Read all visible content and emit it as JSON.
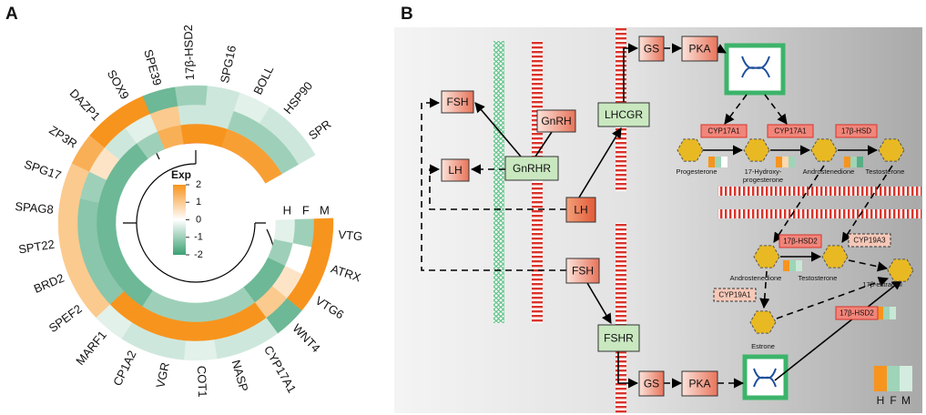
{
  "panel_labels": [
    "A",
    "B"
  ],
  "chart_data": {
    "type": "circular-heatmap",
    "categories": [
      "17β-HSD2",
      "SPG16",
      "BOLL",
      "HSP90",
      "SPR",
      "VTG",
      "ATRX",
      "VTG6",
      "WNT4",
      "CYP17A1",
      "NASP",
      "COT1",
      "VGR",
      "CP1A2",
      "MARF1",
      "SPEF2",
      "BRD2",
      "SPT22",
      "SPAG8",
      "SPG17",
      "ZP3R",
      "DAZP1",
      "SOX9",
      "SPE39"
    ],
    "series": [
      {
        "name": "H",
        "values": [
          2,
          2,
          1.8,
          1.8,
          1.8,
          -0.3,
          -1,
          -1.5,
          -1.5,
          -1,
          -1,
          -1,
          -1,
          -1,
          -1.5,
          -1.5,
          -1.5,
          -1.5,
          -1.5,
          -1.5,
          -1.5,
          -1.5,
          -1,
          1.5
        ]
      },
      {
        "name": "F",
        "values": [
          -0.5,
          -0.5,
          -1,
          -1,
          -1,
          -1,
          0,
          0.5,
          1,
          2,
          2,
          2,
          2,
          2,
          2,
          -1.2,
          -1.2,
          -1.2,
          -1.2,
          -1,
          0.5,
          -0.5,
          -0.3,
          1
        ]
      },
      {
        "name": "M",
        "values": [
          -1,
          -0.5,
          -0.3,
          -0.5,
          -0.5,
          2,
          2,
          2,
          -1.5,
          -0.5,
          -0.5,
          -0.3,
          -0.5,
          -0.5,
          -0.3,
          1,
          1,
          1,
          1,
          1,
          1.5,
          2,
          2,
          -1.5
        ]
      }
    ],
    "colorbar": {
      "title": "Exp",
      "lim": [
        -2,
        2
      ],
      "ticks": [
        2,
        1,
        0,
        -1,
        -2
      ]
    }
  },
  "diagram": {
    "nodes": [
      {
        "label": "FSH"
      },
      {
        "label": "LH"
      },
      {
        "label": "GnRH"
      },
      {
        "label": "GnRHR"
      },
      {
        "label": "LHCGR"
      },
      {
        "label": "LH"
      },
      {
        "label": "FSH"
      },
      {
        "label": "FSHR"
      },
      {
        "label": "GS"
      },
      {
        "label": "PKA"
      },
      {
        "label": "GS"
      },
      {
        "label": "PKA"
      }
    ],
    "enzymes": [
      {
        "label": "CYP17A1"
      },
      {
        "label": "CYP17A1"
      },
      {
        "label": "17β-HSD"
      },
      {
        "label": "17β-HSD2"
      },
      {
        "label": "CYP19A3"
      },
      {
        "label": "CYP19A1"
      },
      {
        "label": "17β-HSD2"
      }
    ],
    "metabolites": [
      {
        "label": [
          "Progesterone"
        ]
      },
      {
        "label": [
          "17-Hydroxy-",
          "progesterone"
        ]
      },
      {
        "label": [
          "Androstenedione"
        ]
      },
      {
        "label": [
          "Testosterone"
        ]
      },
      {
        "label": [
          "Androstenedione"
        ]
      },
      {
        "label": [
          "Testosterone"
        ]
      },
      {
        "label": [
          "17β-estradiol"
        ]
      },
      {
        "label": [
          "Estrone"
        ]
      }
    ],
    "legend": [
      "H",
      "F",
      "M"
    ]
  }
}
